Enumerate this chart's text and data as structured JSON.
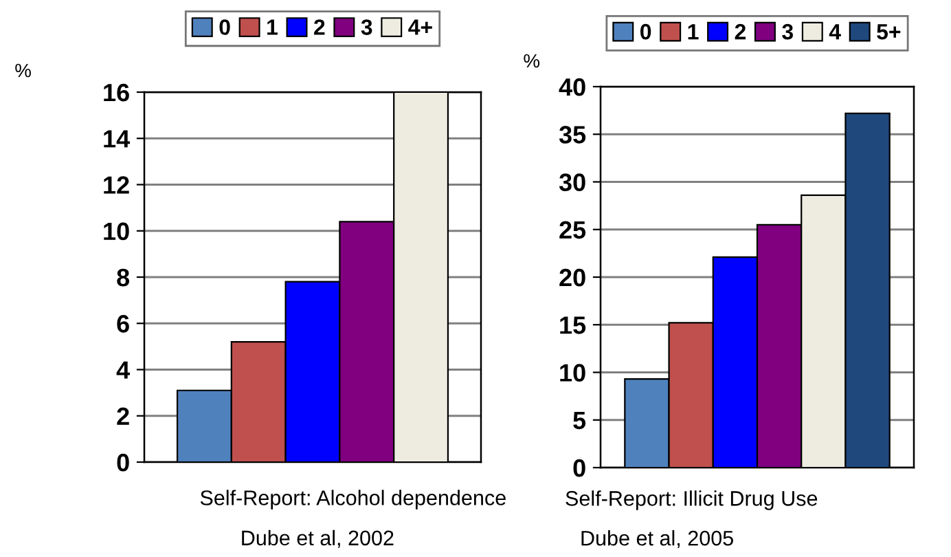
{
  "chart_data": [
    {
      "type": "bar",
      "ylabel": "%",
      "xlabel": "Self-Report: Alcohol dependence",
      "annotations": [
        "Dube et al, 2002"
      ],
      "categories": [
        null,
        null,
        null,
        null,
        null
      ],
      "stacked": true,
      "series": [
        {
          "name": "0",
          "color": "#4f81bd",
          "values": [
            3.1,
            null,
            null,
            null,
            null
          ]
        },
        {
          "name": "1",
          "color": "#c0504d",
          "values": [
            null,
            5.2,
            null,
            null,
            null
          ]
        },
        {
          "name": "2",
          "color": "#0000ff",
          "values": [
            null,
            null,
            7.8,
            null,
            null
          ]
        },
        {
          "name": "3",
          "color": "#800080",
          "values": [
            null,
            null,
            null,
            10.4,
            null
          ]
        },
        {
          "name": "4+",
          "color": "#eeece1",
          "values": [
            null,
            null,
            null,
            null,
            16.0
          ]
        }
      ],
      "ylim": [
        0,
        16
      ],
      "yticks": [
        0,
        2,
        4,
        6,
        8,
        10,
        12,
        14,
        16
      ],
      "grid": "y",
      "legend": "top",
      "tick_labels": "y"
    },
    {
      "type": "bar",
      "ylabel": "%",
      "xlabel": "Self-Report: Illicit Drug Use",
      "annotations": [
        "Dube et al, 2005"
      ],
      "categories": [
        null,
        null,
        null,
        null,
        null,
        null
      ],
      "stacked": true,
      "series": [
        {
          "name": "0",
          "color": "#4f81bd",
          "values": [
            9.3,
            null,
            null,
            null,
            null,
            null
          ]
        },
        {
          "name": "1",
          "color": "#c0504d",
          "values": [
            null,
            15.2,
            null,
            null,
            null,
            null
          ]
        },
        {
          "name": "2",
          "color": "#0000ff",
          "values": [
            null,
            null,
            22.1,
            null,
            null,
            null
          ]
        },
        {
          "name": "3",
          "color": "#800080",
          "values": [
            null,
            null,
            null,
            25.5,
            null,
            null
          ]
        },
        {
          "name": "4",
          "color": "#eeece1",
          "values": [
            null,
            null,
            null,
            null,
            28.6,
            null
          ]
        },
        {
          "name": "5+",
          "color": "#1f497d",
          "values": [
            null,
            null,
            null,
            null,
            null,
            37.2
          ]
        }
      ],
      "ylim": [
        0,
        40
      ],
      "yticks": [
        0,
        5,
        10,
        15,
        20,
        25,
        30,
        35,
        40
      ],
      "grid": "y",
      "legend": "top",
      "tick_labels": "y"
    }
  ]
}
